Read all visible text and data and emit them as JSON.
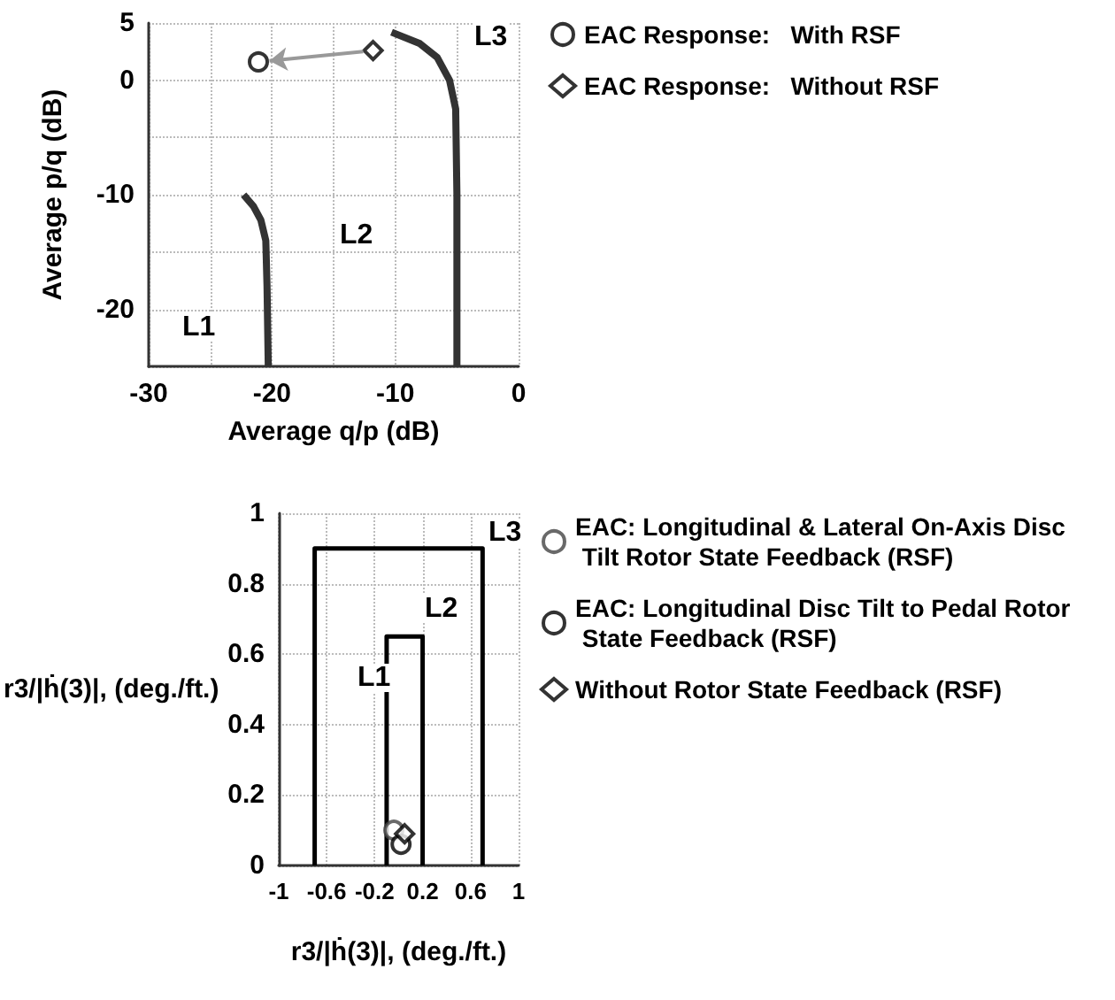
{
  "chart_data": [
    {
      "type": "scatter",
      "xlabel": "Average q/p (dB)",
      "ylabel": "Average p/q (dB)",
      "xlim": [
        -30,
        0
      ],
      "ylim": [
        -25,
        5
      ],
      "xticks": [
        -30,
        {
          "value": -25,
          "label": null
        },
        -20,
        {
          "value": -15,
          "label": null
        },
        -10,
        {
          "value": -5,
          "label": null
        },
        0
      ],
      "yticks": [
        {
          "value": -25,
          "label": null
        },
        -20,
        {
          "value": -15,
          "label": null
        },
        -10,
        {
          "value": -5,
          "label": null
        },
        0,
        5
      ],
      "grid": true,
      "legend": "top right",
      "series": [
        {
          "name": "EAC Response:   With RSF",
          "marker": "circle",
          "color": "#000000",
          "x": [
            -21.1
          ],
          "values": [
            1.6
          ]
        },
        {
          "name": "EAC Response:   Without RSF",
          "marker": "diamond",
          "color": "#000000",
          "x": [
            -11.8
          ],
          "values": [
            2.6
          ]
        },
        {
          "type": "line",
          "marker": "none",
          "color": "#333333",
          "x": [
            -22.3,
            -21.5,
            -20.9,
            -20.5,
            -20.4,
            -20.3
          ],
          "values": [
            -10,
            -11,
            -12.2,
            -14,
            -18,
            -25
          ]
        },
        {
          "type": "line",
          "marker": "none",
          "color": "#333333",
          "x": [
            -10.3,
            -8,
            -6.6,
            -5.6,
            -5.1,
            -5,
            -5
          ],
          "values": [
            4.2,
            3.2,
            2,
            0,
            -2.5,
            -10,
            -25
          ]
        }
      ],
      "annotations": [
        "L1",
        "L2",
        "L3"
      ]
    },
    {
      "type": "scatter",
      "xlabel": "r3/|ḣ(3)|, (deg./ft.)",
      "ylabel": "r3/|ḣ(3)|, (deg./ft.)",
      "xlim": [
        -1,
        1
      ],
      "ylim": [
        0,
        1
      ],
      "xticks": [
        -1,
        -0.6,
        -0.2,
        0.2,
        0.6,
        1
      ],
      "yticks": [
        0,
        0.2,
        0.4,
        0.6,
        0.8,
        1
      ],
      "grid": true,
      "legend": "right",
      "series": [
        {
          "name": "EAC: Longitudinal & Lateral On-Axis Disc Tilt Rotor State Feedback (RSF)",
          "marker": "circle",
          "color": "#444444",
          "x": [
            -0.04
          ],
          "values": [
            0.1
          ]
        },
        {
          "name": "EAC: Longitudinal Disc Tilt to Pedal Rotor State Feedback (RSF)",
          "marker": "circle",
          "color": "#000000",
          "x": [
            0.02
          ],
          "values": [
            0.06
          ]
        },
        {
          "name": "Without Rotor State Feedback (RSF)",
          "marker": "diamond",
          "color": "#000000",
          "x": [
            0.05
          ],
          "values": [
            0.09
          ]
        },
        {
          "type": "line",
          "marker": "none",
          "color": "#000000",
          "x": [
            -0.7,
            -0.7,
            0.7,
            0.7
          ],
          "values": [
            0,
            0.9,
            0.9,
            0
          ]
        },
        {
          "type": "line",
          "marker": "none",
          "color": "#000000",
          "x": [
            -0.1,
            -0.1,
            0.2,
            0.2
          ],
          "values": [
            0,
            0.65,
            0.65,
            0
          ]
        }
      ],
      "annotations": [
        "L1",
        "L2",
        "L3"
      ]
    }
  ]
}
